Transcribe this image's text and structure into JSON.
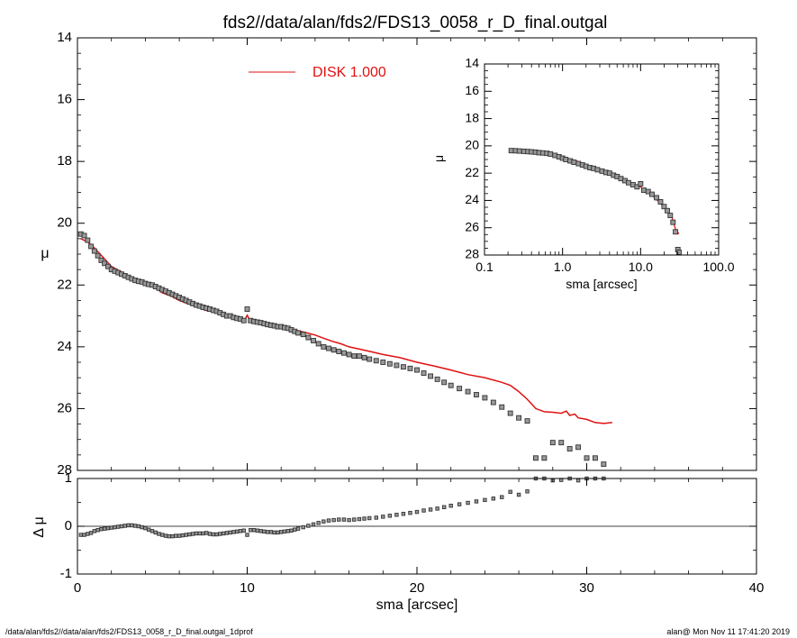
{
  "title": "fds2//data/alan/fds2/FDS13_0058_r_D_final.outgal",
  "footer": {
    "left": "/data/alan/fds2//data/alan/fds2/FDS13_0058_r_D_final.outgal_1dprof",
    "right": "alan@  Mon Nov 11 17:41:20 2019"
  },
  "colors": {
    "model": "#e01010",
    "data_edge": "#333333",
    "data_fill": "#999999",
    "axis": "#000000"
  },
  "chart_data": [
    {
      "panel": "main",
      "type": "scatter",
      "xlabel": "",
      "ylabel": "μ",
      "xlim": [
        0,
        40
      ],
      "ylim": [
        28,
        14
      ],
      "y_inverted": true,
      "xticks": [
        0,
        10,
        20,
        30,
        40
      ],
      "xticklabels": [
        "",
        "",
        "",
        "",
        ""
      ],
      "yticks": [
        14,
        16,
        18,
        20,
        22,
        24,
        26,
        28
      ],
      "yticklabels": [
        "14",
        "16",
        "18",
        "20",
        "22",
        "24",
        "26",
        "28"
      ],
      "legend": {
        "label": "DISK  1.000",
        "position": "top-center"
      },
      "series": [
        {
          "name": "",
          "kind": "points",
          "x": [
            0.2,
            0.4,
            0.6,
            0.8,
            1.0,
            1.2,
            1.4,
            1.6,
            1.8,
            2.0,
            2.2,
            2.4,
            2.6,
            2.8,
            3.0,
            3.2,
            3.4,
            3.6,
            3.8,
            4.0,
            4.2,
            4.4,
            4.6,
            4.8,
            5.0,
            5.2,
            5.4,
            5.6,
            5.8,
            6.0,
            6.2,
            6.4,
            6.6,
            6.8,
            7.0,
            7.2,
            7.4,
            7.6,
            7.8,
            8.0,
            8.2,
            8.4,
            8.6,
            8.8,
            9.0,
            9.2,
            9.4,
            9.6,
            9.8,
            10.0,
            10.2,
            10.4,
            10.6,
            10.8,
            11.0,
            11.2,
            11.4,
            11.6,
            11.8,
            12.0,
            12.2,
            12.4,
            12.6,
            12.8,
            13.0,
            13.3,
            13.6,
            13.9,
            14.2,
            14.5,
            14.8,
            15.1,
            15.4,
            15.7,
            16.0,
            16.3,
            16.6,
            16.9,
            17.2,
            17.6,
            18.0,
            18.4,
            18.8,
            19.2,
            19.6,
            20.0,
            20.4,
            20.8,
            21.2,
            21.6,
            22.0,
            22.5,
            23.0,
            23.5,
            24.0,
            24.5,
            25.0,
            25.5,
            26.0,
            26.5,
            27.0,
            27.5,
            28.0,
            28.5,
            29.0,
            29.5,
            30.0,
            30.5,
            31.0
          ],
          "y": [
            20.35,
            20.4,
            20.55,
            20.75,
            20.9,
            21.05,
            21.2,
            21.3,
            21.4,
            21.5,
            21.55,
            21.6,
            21.65,
            21.7,
            21.75,
            21.8,
            21.85,
            21.88,
            21.9,
            21.95,
            21.98,
            22.0,
            22.05,
            22.1,
            22.15,
            22.2,
            22.25,
            22.3,
            22.35,
            22.4,
            22.45,
            22.5,
            22.55,
            22.6,
            22.65,
            22.68,
            22.72,
            22.75,
            22.78,
            22.82,
            22.85,
            22.9,
            22.95,
            23.0,
            23.0,
            23.05,
            23.08,
            23.1,
            23.15,
            22.78,
            23.15,
            23.18,
            23.2,
            23.22,
            23.25,
            23.28,
            23.3,
            23.32,
            23.35,
            23.35,
            23.38,
            23.4,
            23.45,
            23.5,
            23.55,
            23.6,
            23.7,
            23.8,
            23.9,
            24.0,
            24.05,
            24.1,
            24.15,
            24.2,
            24.25,
            24.3,
            24.3,
            24.35,
            24.4,
            24.45,
            24.5,
            24.55,
            24.6,
            24.65,
            24.7,
            24.75,
            24.85,
            24.95,
            25.05,
            25.15,
            25.25,
            25.35,
            25.45,
            25.55,
            25.65,
            25.8,
            25.95,
            26.15,
            26.3,
            26.4,
            27.6,
            27.6,
            27.1,
            27.1,
            27.3,
            27.25,
            27.6,
            27.6,
            27.8
          ]
        },
        {
          "name": "DISK  1.000",
          "kind": "line",
          "x": [
            0.2,
            0.6,
            1.0,
            1.5,
            2.0,
            2.5,
            3.0,
            3.5,
            4.0,
            4.5,
            5.0,
            5.5,
            6.0,
            6.5,
            7.0,
            7.5,
            7.7,
            7.9,
            8.2,
            8.6,
            9.0,
            9.5,
            9.8,
            10.0,
            10.2,
            10.6,
            11.0,
            11.5,
            12.0,
            12.5,
            13.0,
            13.5,
            14.0,
            14.5,
            15.0,
            15.5,
            16.0,
            17.0,
            18.0,
            19.0,
            20.0,
            21.0,
            22.0,
            23.0,
            24.0,
            25.0,
            25.5,
            26.0,
            26.5,
            27.0,
            27.5,
            28.0,
            28.5,
            28.8,
            29.0,
            29.3,
            29.5,
            30.0,
            30.5,
            31.0,
            31.5
          ],
          "y": [
            20.5,
            20.6,
            20.8,
            21.1,
            21.4,
            21.55,
            21.7,
            21.85,
            21.95,
            22.05,
            22.25,
            22.35,
            22.5,
            22.6,
            22.7,
            22.8,
            22.85,
            22.78,
            22.88,
            22.98,
            23.05,
            23.12,
            23.18,
            22.98,
            23.2,
            23.25,
            23.28,
            23.32,
            23.38,
            23.42,
            23.48,
            23.55,
            23.62,
            23.72,
            23.82,
            23.9,
            24.0,
            24.12,
            24.25,
            24.35,
            24.5,
            24.62,
            24.75,
            24.9,
            25.0,
            25.15,
            25.25,
            25.45,
            25.7,
            26.0,
            26.1,
            26.12,
            26.15,
            26.08,
            26.22,
            26.18,
            26.3,
            26.35,
            26.45,
            26.48,
            26.45
          ]
        }
      ]
    },
    {
      "panel": "residual",
      "type": "scatter",
      "xlabel": "sma [arcsec]",
      "ylabel": "Δ μ",
      "xlim": [
        0,
        40
      ],
      "ylim": [
        -1,
        1
      ],
      "xticks": [
        0,
        10,
        20,
        30,
        40
      ],
      "xticklabels": [
        "0",
        "10",
        "20",
        "30",
        "40"
      ],
      "yticks": [
        -1,
        0,
        1
      ],
      "yticklabels": [
        "-1",
        "0",
        "1"
      ],
      "series": [
        {
          "name": "",
          "kind": "points",
          "x": [
            0.2,
            0.4,
            0.6,
            0.8,
            1.0,
            1.2,
            1.4,
            1.6,
            1.8,
            2.0,
            2.2,
            2.4,
            2.6,
            2.8,
            3.0,
            3.2,
            3.4,
            3.6,
            3.8,
            4.0,
            4.2,
            4.4,
            4.6,
            4.8,
            5.0,
            5.2,
            5.4,
            5.6,
            5.8,
            6.0,
            6.2,
            6.4,
            6.6,
            6.8,
            7.0,
            7.2,
            7.4,
            7.6,
            7.8,
            8.0,
            8.2,
            8.4,
            8.6,
            8.8,
            9.0,
            9.2,
            9.4,
            9.6,
            9.8,
            10.0,
            10.2,
            10.4,
            10.6,
            10.8,
            11.0,
            11.2,
            11.4,
            11.6,
            11.8,
            12.0,
            12.2,
            12.4,
            12.6,
            12.8,
            13.0,
            13.3,
            13.6,
            13.9,
            14.2,
            14.5,
            14.8,
            15.1,
            15.4,
            15.7,
            16.0,
            16.3,
            16.6,
            16.9,
            17.2,
            17.6,
            18.0,
            18.4,
            18.8,
            19.2,
            19.6,
            20.0,
            20.4,
            20.8,
            21.2,
            21.6,
            22.0,
            22.5,
            23.0,
            23.5,
            24.0,
            24.5,
            25.0,
            25.5,
            26.0,
            26.5,
            27.0,
            27.5,
            28.0,
            28.5,
            29.0,
            29.5,
            30.0,
            30.5,
            31.0
          ],
          "y": [
            -0.18,
            -0.18,
            -0.16,
            -0.14,
            -0.1,
            -0.08,
            -0.06,
            -0.05,
            -0.04,
            -0.03,
            -0.02,
            -0.01,
            0.0,
            0.01,
            0.02,
            0.02,
            0.01,
            0.0,
            -0.02,
            -0.04,
            -0.07,
            -0.1,
            -0.13,
            -0.16,
            -0.18,
            -0.2,
            -0.21,
            -0.21,
            -0.2,
            -0.2,
            -0.19,
            -0.18,
            -0.17,
            -0.16,
            -0.15,
            -0.15,
            -0.15,
            -0.14,
            -0.16,
            -0.17,
            -0.17,
            -0.16,
            -0.15,
            -0.14,
            -0.13,
            -0.12,
            -0.11,
            -0.1,
            -0.09,
            -0.18,
            -0.08,
            -0.08,
            -0.09,
            -0.1,
            -0.11,
            -0.12,
            -0.12,
            -0.13,
            -0.13,
            -0.12,
            -0.11,
            -0.1,
            -0.09,
            -0.07,
            -0.05,
            -0.02,
            0.01,
            0.04,
            0.07,
            0.1,
            0.12,
            0.13,
            0.14,
            0.14,
            0.13,
            0.14,
            0.15,
            0.16,
            0.17,
            0.18,
            0.2,
            0.22,
            0.24,
            0.26,
            0.28,
            0.3,
            0.33,
            0.35,
            0.37,
            0.4,
            0.43,
            0.46,
            0.49,
            0.52,
            0.55,
            0.58,
            0.61,
            0.72,
            0.66,
            0.73,
            1.0,
            1.0,
            0.96,
            0.97,
            1.0,
            0.96,
            1.0,
            1.0,
            1.0
          ]
        }
      ]
    },
    {
      "panel": "inset",
      "type": "scatter",
      "xscale": "log",
      "xlabel": "sma [arcsec]",
      "ylabel": "μ",
      "xlim": [
        0.1,
        100
      ],
      "ylim": [
        28,
        14
      ],
      "y_inverted": true,
      "xticks": [
        0.1,
        1,
        10,
        100
      ],
      "xticklabels": [
        "0.1",
        "1.0",
        "10.0",
        "100.0"
      ],
      "yticks": [
        14,
        16,
        18,
        20,
        22,
        24,
        26,
        28
      ],
      "yticklabels": [
        "14",
        "16",
        "18",
        "20",
        "22",
        "24",
        "26",
        "28"
      ],
      "series": [
        {
          "name": "",
          "kind": "points",
          "x": [
            0.22,
            0.25,
            0.28,
            0.32,
            0.36,
            0.4,
            0.45,
            0.5,
            0.56,
            0.63,
            0.7,
            0.8,
            0.9,
            1.0,
            1.1,
            1.25,
            1.4,
            1.6,
            1.8,
            2.0,
            2.25,
            2.5,
            2.8,
            3.2,
            3.6,
            4.0,
            4.5,
            5.0,
            5.6,
            6.3,
            7.0,
            8.0,
            9.0,
            10.0,
            11.0,
            12.5,
            14.0,
            16.0,
            18.0,
            20.0,
            22.0,
            24.0,
            26.0,
            28.0,
            30.0,
            31.0
          ],
          "y": [
            20.35,
            20.36,
            20.38,
            20.4,
            20.42,
            20.44,
            20.46,
            20.5,
            20.52,
            20.55,
            20.6,
            20.7,
            20.8,
            20.9,
            21.0,
            21.1,
            21.2,
            21.3,
            21.4,
            21.5,
            21.6,
            21.65,
            21.75,
            21.85,
            21.95,
            22.0,
            22.15,
            22.25,
            22.4,
            22.55,
            22.7,
            22.85,
            23.0,
            22.78,
            23.25,
            23.35,
            23.55,
            23.8,
            24.1,
            24.45,
            24.75,
            25.1,
            25.6,
            26.3,
            27.6,
            27.8
          ]
        },
        {
          "name": "DISK  1.000",
          "kind": "line",
          "x": [
            0.22,
            0.3,
            0.5,
            0.7,
            1.0,
            1.5,
            2.0,
            3.0,
            4.0,
            5.0,
            7.0,
            10.0,
            14.0,
            20.0,
            25.0,
            28.0,
            31.0
          ],
          "y": [
            20.5,
            20.5,
            20.55,
            20.65,
            20.8,
            21.1,
            21.4,
            21.7,
            21.95,
            22.25,
            22.7,
            23.0,
            23.6,
            24.5,
            25.15,
            26.1,
            26.45
          ]
        }
      ]
    }
  ]
}
